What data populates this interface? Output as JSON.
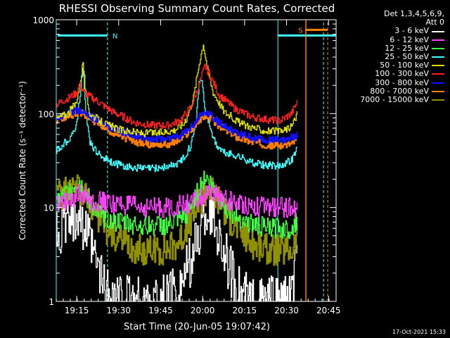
{
  "chart_data": {
    "type": "line",
    "title": "RHESSI Observing Summary Count Rates, Corrected",
    "xlabel": "Start Time (20-Jun-05 19:07:42)",
    "ylabel": "Corrected Count Rate (s⁻¹ detector⁻¹)",
    "yscale": "log",
    "ylim": [
      1,
      1000
    ],
    "xlim_minutes": [
      0,
      100
    ],
    "x_start": "19:07:42",
    "xticks": [
      {
        "minute": 7.3,
        "label": "19:15"
      },
      {
        "minute": 22.3,
        "label": "19:30"
      },
      {
        "minute": 37.3,
        "label": "19:45"
      },
      {
        "minute": 52.3,
        "label": "20:00"
      },
      {
        "minute": 67.3,
        "label": "20:15"
      },
      {
        "minute": 82.3,
        "label": "20:30"
      },
      {
        "minute": 97.3,
        "label": "20:45"
      }
    ],
    "yticks": [
      {
        "value": 1,
        "label": "1"
      },
      {
        "value": 10,
        "label": "10"
      },
      {
        "value": 100,
        "label": "100"
      },
      {
        "value": 1000,
        "label": "1000"
      }
    ],
    "legend_title": [
      "Det 1,3,4,5,6,9,",
      "Att 0"
    ],
    "series": [
      {
        "name": "3 - 6 keV",
        "color": "#ffffff",
        "points": [
          [
            0,
            5
          ],
          [
            4,
            7
          ],
          [
            8,
            9
          ],
          [
            10,
            6
          ],
          [
            14,
            2.5
          ],
          [
            18,
            1.2
          ],
          [
            25,
            1.0
          ],
          [
            35,
            1.0
          ],
          [
            40,
            1.1
          ],
          [
            45,
            1.6
          ],
          [
            50,
            4
          ],
          [
            53,
            8
          ],
          [
            55,
            9
          ],
          [
            58,
            5
          ],
          [
            62,
            2.2
          ],
          [
            66,
            1.2
          ],
          [
            70,
            1.0
          ],
          [
            80,
            1.0
          ],
          [
            84,
            1.1
          ],
          [
            86,
            3
          ]
        ]
      },
      {
        "name": "6 - 12 keV",
        "color": "#ff40ff",
        "points": [
          [
            0,
            11
          ],
          [
            6,
            13
          ],
          [
            8,
            14
          ],
          [
            12,
            12
          ],
          [
            20,
            11
          ],
          [
            30,
            10
          ],
          [
            40,
            10
          ],
          [
            48,
            11
          ],
          [
            53,
            13
          ],
          [
            56,
            14
          ],
          [
            60,
            12
          ],
          [
            66,
            11
          ],
          [
            75,
            10
          ],
          [
            84,
            10
          ],
          [
            86,
            10
          ]
        ]
      },
      {
        "name": "12 - 25 keV",
        "color": "#40ff40",
        "points": [
          [
            0,
            11
          ],
          [
            5,
            15
          ],
          [
            8,
            19
          ],
          [
            11,
            13
          ],
          [
            16,
            8
          ],
          [
            22,
            7
          ],
          [
            30,
            6.5
          ],
          [
            40,
            6.5
          ],
          [
            46,
            8
          ],
          [
            50,
            14
          ],
          [
            53,
            21
          ],
          [
            55,
            18
          ],
          [
            58,
            13
          ],
          [
            62,
            9
          ],
          [
            68,
            7
          ],
          [
            76,
            6
          ],
          [
            84,
            6
          ],
          [
            86,
            7
          ]
        ]
      },
      {
        "name": "25 - 50 keV",
        "color": "#40ffff",
        "points": [
          [
            0,
            40
          ],
          [
            4,
            52
          ],
          [
            7,
            70
          ],
          [
            8.5,
            160
          ],
          [
            9.5,
            320
          ],
          [
            10.5,
            110
          ],
          [
            12,
            48
          ],
          [
            15,
            37
          ],
          [
            20,
            30
          ],
          [
            25,
            27
          ],
          [
            30,
            26
          ],
          [
            35,
            26
          ],
          [
            40,
            27
          ],
          [
            44,
            30
          ],
          [
            48,
            45
          ],
          [
            50,
            90
          ],
          [
            51,
            210
          ],
          [
            52,
            245
          ],
          [
            53,
            110
          ],
          [
            55,
            72
          ],
          [
            57,
            46
          ],
          [
            60,
            38
          ],
          [
            65,
            35
          ],
          [
            70,
            30
          ],
          [
            75,
            28
          ],
          [
            80,
            28
          ],
          [
            84,
            32
          ],
          [
            86,
            42
          ]
        ]
      },
      {
        "name": "50 - 100 keV",
        "color": "#e0e000",
        "points": [
          [
            0,
            90
          ],
          [
            4,
            100
          ],
          [
            7,
            130
          ],
          [
            8.5,
            210
          ],
          [
            9.5,
            360
          ],
          [
            10.5,
            160
          ],
          [
            12,
            100
          ],
          [
            16,
            82
          ],
          [
            22,
            68
          ],
          [
            30,
            62
          ],
          [
            36,
            62
          ],
          [
            42,
            67
          ],
          [
            46,
            80
          ],
          [
            49,
            150
          ],
          [
            51,
            340
          ],
          [
            52.5,
            560
          ],
          [
            54,
            300
          ],
          [
            56,
            170
          ],
          [
            60,
            105
          ],
          [
            66,
            78
          ],
          [
            74,
            66
          ],
          [
            80,
            64
          ],
          [
            84,
            72
          ],
          [
            86,
            100
          ]
        ]
      },
      {
        "name": "100 - 300 keV",
        "color": "#ff2020",
        "points": [
          [
            0,
            125
          ],
          [
            4,
            145
          ],
          [
            7,
            165
          ],
          [
            8.5,
            200
          ],
          [
            10,
            165
          ],
          [
            14,
            140
          ],
          [
            20,
            105
          ],
          [
            28,
            80
          ],
          [
            34,
            75
          ],
          [
            40,
            75
          ],
          [
            44,
            84
          ],
          [
            48,
            115
          ],
          [
            51,
            200
          ],
          [
            53,
            320
          ],
          [
            55,
            255
          ],
          [
            58,
            160
          ],
          [
            64,
            112
          ],
          [
            70,
            92
          ],
          [
            76,
            86
          ],
          [
            80,
            84
          ],
          [
            84,
            100
          ],
          [
            86,
            132
          ]
        ]
      },
      {
        "name": "300 - 800 keV",
        "color": "#1010ff",
        "points": [
          [
            0,
            92
          ],
          [
            4,
            100
          ],
          [
            8,
            110
          ],
          [
            10,
            104
          ],
          [
            14,
            88
          ],
          [
            20,
            70
          ],
          [
            28,
            57
          ],
          [
            34,
            54
          ],
          [
            40,
            54
          ],
          [
            44,
            58
          ],
          [
            48,
            72
          ],
          [
            51,
            92
          ],
          [
            53,
            104
          ],
          [
            55,
            98
          ],
          [
            58,
            80
          ],
          [
            64,
            62
          ],
          [
            70,
            55
          ],
          [
            76,
            52
          ],
          [
            80,
            52
          ],
          [
            84,
            55
          ],
          [
            86,
            60
          ]
        ]
      },
      {
        "name": "800 - 7000 keV",
        "color": "#ff8000",
        "points": [
          [
            0,
            85
          ],
          [
            4,
            94
          ],
          [
            8,
            104
          ],
          [
            10,
            96
          ],
          [
            14,
            82
          ],
          [
            20,
            63
          ],
          [
            28,
            50
          ],
          [
            34,
            47
          ],
          [
            40,
            47
          ],
          [
            44,
            52
          ],
          [
            48,
            66
          ],
          [
            51,
            84
          ],
          [
            53,
            96
          ],
          [
            55,
            90
          ],
          [
            58,
            74
          ],
          [
            64,
            57
          ],
          [
            70,
            50
          ],
          [
            76,
            46
          ],
          [
            80,
            46
          ],
          [
            84,
            48
          ],
          [
            86,
            53
          ]
        ]
      },
      {
        "name": "7000 - 15000 keV",
        "color": "#909000",
        "points": [
          [
            0,
            13
          ],
          [
            4,
            15
          ],
          [
            8,
            15
          ],
          [
            10,
            13
          ],
          [
            14,
            9
          ],
          [
            18,
            6
          ],
          [
            22,
            4.5
          ],
          [
            28,
            3.5
          ],
          [
            36,
            3.5
          ],
          [
            42,
            4
          ],
          [
            46,
            5.5
          ],
          [
            50,
            10
          ],
          [
            53,
            15
          ],
          [
            55,
            16
          ],
          [
            58,
            12
          ],
          [
            62,
            7.5
          ],
          [
            66,
            5.5
          ],
          [
            70,
            4
          ],
          [
            76,
            3.5
          ],
          [
            84,
            3.5
          ],
          [
            86,
            5
          ]
        ]
      }
    ],
    "annotations": [
      {
        "label": "N",
        "color": "#40ffff"
      },
      {
        "label": "S",
        "color": "#ff8000"
      }
    ],
    "grid": false,
    "legend_position": "top-right"
  },
  "footer": {
    "timestamp": "17-Oct-2021 15:33"
  }
}
